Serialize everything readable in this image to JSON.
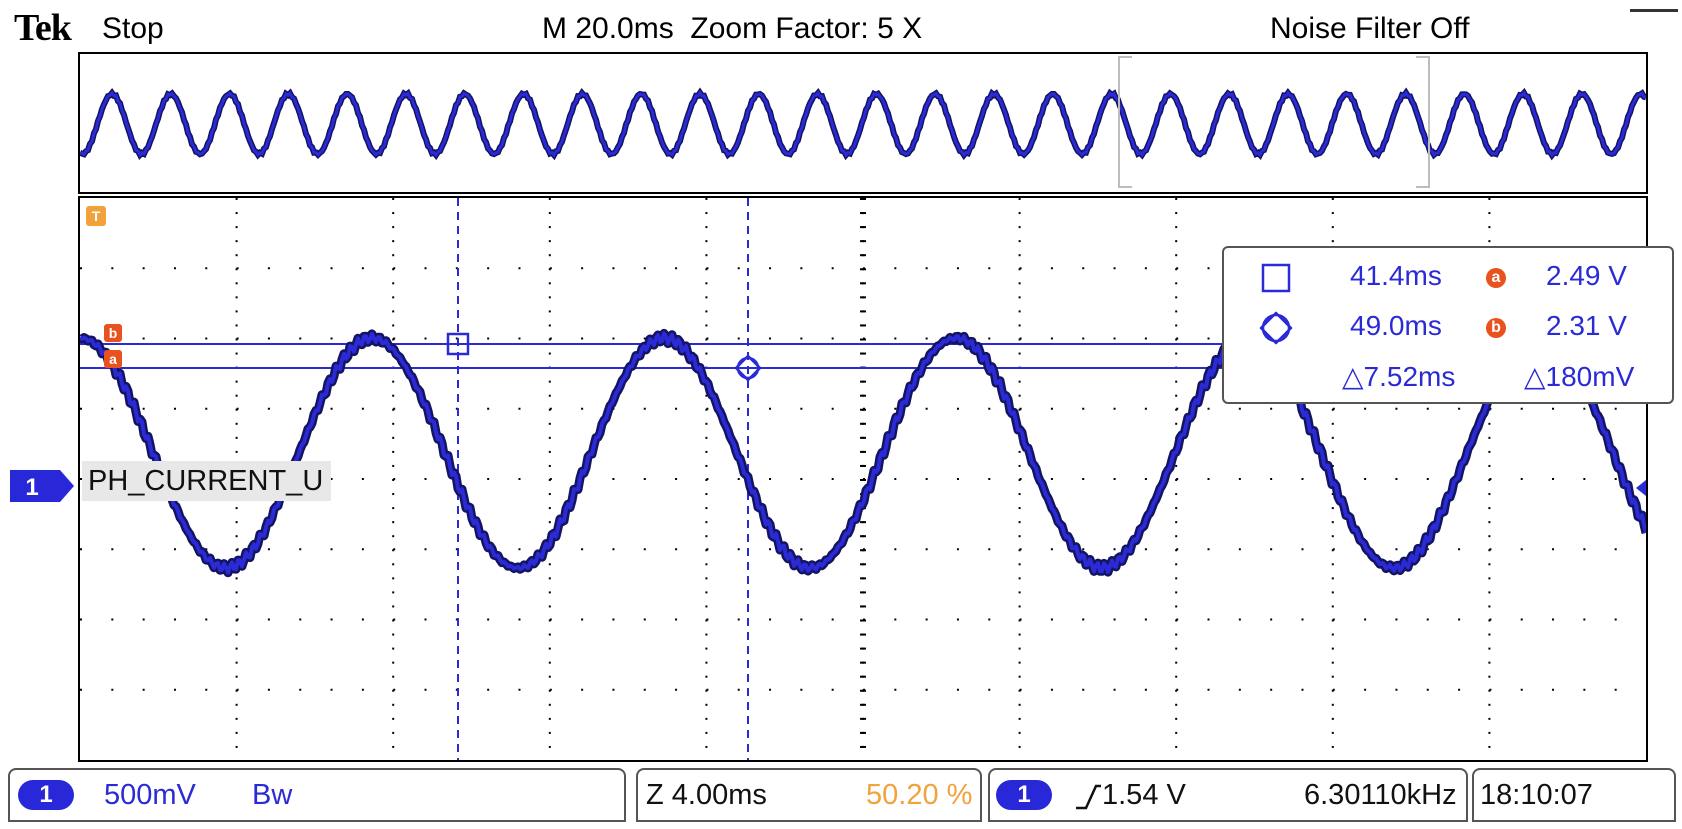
{
  "header": {
    "brand": "Tek",
    "run_state": "Stop",
    "timebase": "M 20.0ms  Zoom Factor: 5 X",
    "noise_filter": "Noise Filter Off"
  },
  "channel": {
    "number": "1",
    "label": "PH_CURRENT_U",
    "color": "#2a2ad6"
  },
  "trigger": {
    "marker_icon": "trigger-t-icon",
    "color": "#f2a23c"
  },
  "cursors": {
    "a_label": "a",
    "b_label": "b",
    "cursor1_symbol": "square-cursor-icon",
    "cursor2_symbol": "circle-cursor-icon"
  },
  "measurements": {
    "cursor1_time": "41.4ms",
    "cursor2_time": "49.0ms",
    "delta_time": "△7.52ms",
    "a_voltage": "2.49 V",
    "b_voltage": "2.31 V",
    "delta_voltage": "△180mV"
  },
  "status_bar": {
    "ch1_scale": "500mV",
    "bandwidth": "Bw",
    "zoom_timebase": "Z 4.00ms",
    "position_pct": "50.20 %",
    "trigger_level": "1.54 V",
    "frequency": "6.30110kHz",
    "clock": "18:10:07"
  },
  "colors": {
    "trace": "#2a2ad6",
    "trace_dark": "#141460",
    "orange": "#f2a23c",
    "badge_red": "#e8521e",
    "grid_dot": "#000000"
  }
}
